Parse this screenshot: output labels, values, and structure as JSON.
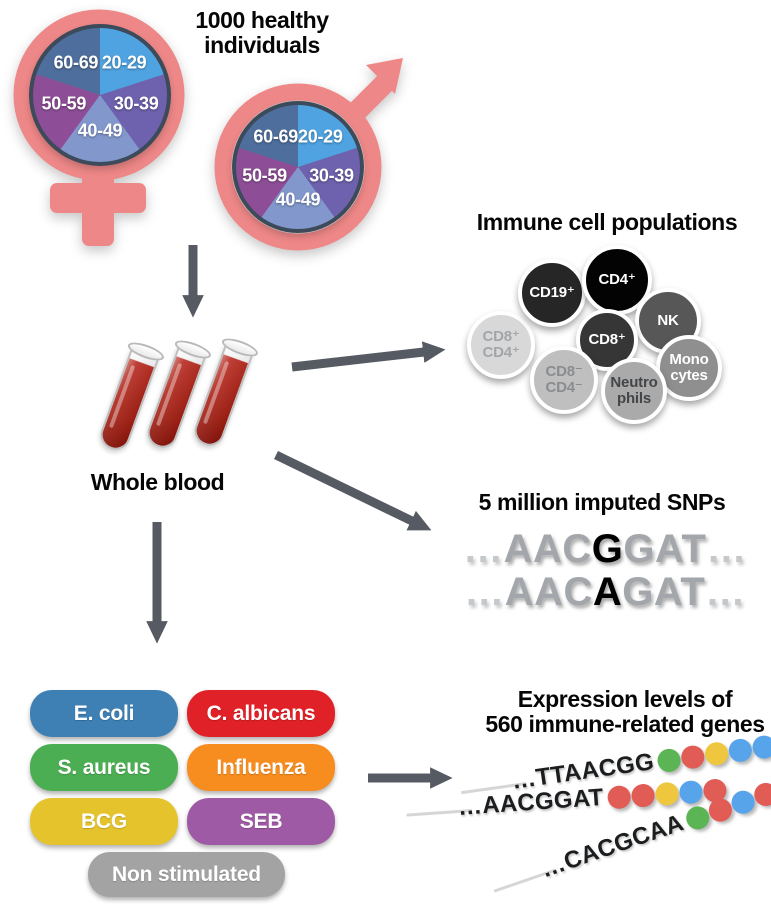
{
  "palette": {
    "symbol_pink": "#ee8787",
    "arrow_gray": "#565b63",
    "pie_border": "#3c4a59",
    "blood_red": "#b2241b"
  },
  "cohort": {
    "title": "1000 healthy\nindividuals",
    "age_groups": [
      {
        "label": "20-29",
        "color": "#4fa3e0"
      },
      {
        "label": "30-39",
        "color": "#6e61ad"
      },
      {
        "label": "40-49",
        "color": "#8298cd"
      },
      {
        "label": "50-59",
        "color": "#8d4e97"
      },
      {
        "label": "60-69",
        "color": "#4e6f9d"
      }
    ]
  },
  "whole_blood": {
    "label": "Whole blood"
  },
  "immune_cells": {
    "title": "Immune cell populations",
    "cells": [
      {
        "label": "CD8⁺\nCD4⁺",
        "bg": "#d8d8d8",
        "fg": "#a2a6a9"
      },
      {
        "label": "CD19⁺",
        "bg": "#262626",
        "fg": "#ffffff"
      },
      {
        "label": "CD4⁺",
        "bg": "#030303",
        "fg": "#ffffff"
      },
      {
        "label": "NK",
        "bg": "#575757",
        "fg": "#ffffff"
      },
      {
        "label": "CD8⁺",
        "bg": "#363636",
        "fg": "#ffffff"
      },
      {
        "label": "Mono\ncytes",
        "bg": "#8f8f8f",
        "fg": "#ffffff"
      },
      {
        "label": "CD8⁻\nCD4⁻",
        "bg": "#bfbfbf",
        "fg": "#8a8d90"
      },
      {
        "label": "Neutro\nphils",
        "bg": "#aaaaaa",
        "fg": "#434649"
      }
    ]
  },
  "snps": {
    "title": "5 million imputed SNPs",
    "lines": [
      {
        "segments": [
          {
            "text": "…",
            "style": "dim"
          },
          {
            "text": "AAC",
            "style": "plain"
          },
          {
            "text": "G",
            "style": "hl"
          },
          {
            "text": "GAT",
            "style": "plain"
          },
          {
            "text": "…",
            "style": "dim"
          }
        ]
      },
      {
        "segments": [
          {
            "text": "…",
            "style": "dim"
          },
          {
            "text": "AAC",
            "style": "plain"
          },
          {
            "text": "A",
            "style": "hl"
          },
          {
            "text": "GAT",
            "style": "plain"
          },
          {
            "text": "…",
            "style": "dim"
          }
        ]
      }
    ]
  },
  "stimuli": {
    "items": [
      {
        "label": "E. coli",
        "color": "#3e80b4"
      },
      {
        "label": "C. albicans",
        "color": "#e02127"
      },
      {
        "label": "S. aureus",
        "color": "#4cae53"
      },
      {
        "label": "Influenza",
        "color": "#f78c1f"
      },
      {
        "label": "BCG",
        "color": "#e5c32c"
      },
      {
        "label": "SEB",
        "color": "#9f5aa5"
      },
      {
        "label": "Non stimulated",
        "color": "#a3a3a3"
      }
    ]
  },
  "expression": {
    "title": "Expression levels of\n560 immune-related genes",
    "dot_palette": {
      "green": "#5cb554",
      "red": "#e05c55",
      "yellow": "#eec73f",
      "blue": "#58a4ea"
    },
    "rows": [
      {
        "sequence": "…TTAACGG",
        "dots": [
          "green",
          "red",
          "yellow",
          "blue",
          "blue"
        ]
      },
      {
        "sequence": "…AACGGAT",
        "dots": [
          "red",
          "red",
          "yellow",
          "blue",
          "red"
        ]
      },
      {
        "sequence": "…CACGCAA",
        "dots": [
          "green",
          "red",
          "blue",
          "red",
          "red"
        ]
      }
    ]
  }
}
